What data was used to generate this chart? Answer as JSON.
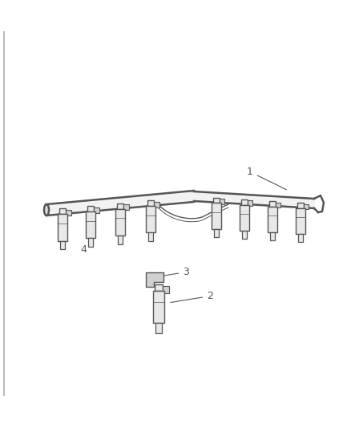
{
  "background_color": "#ffffff",
  "fig_width": 4.38,
  "fig_height": 5.33,
  "dpi": 100,
  "line_color": "#555555",
  "label_color": "#555555",
  "fill_light": "#e8e8e8",
  "fill_mid": "#d0d0d0",
  "border_color": "#bbbbbb"
}
